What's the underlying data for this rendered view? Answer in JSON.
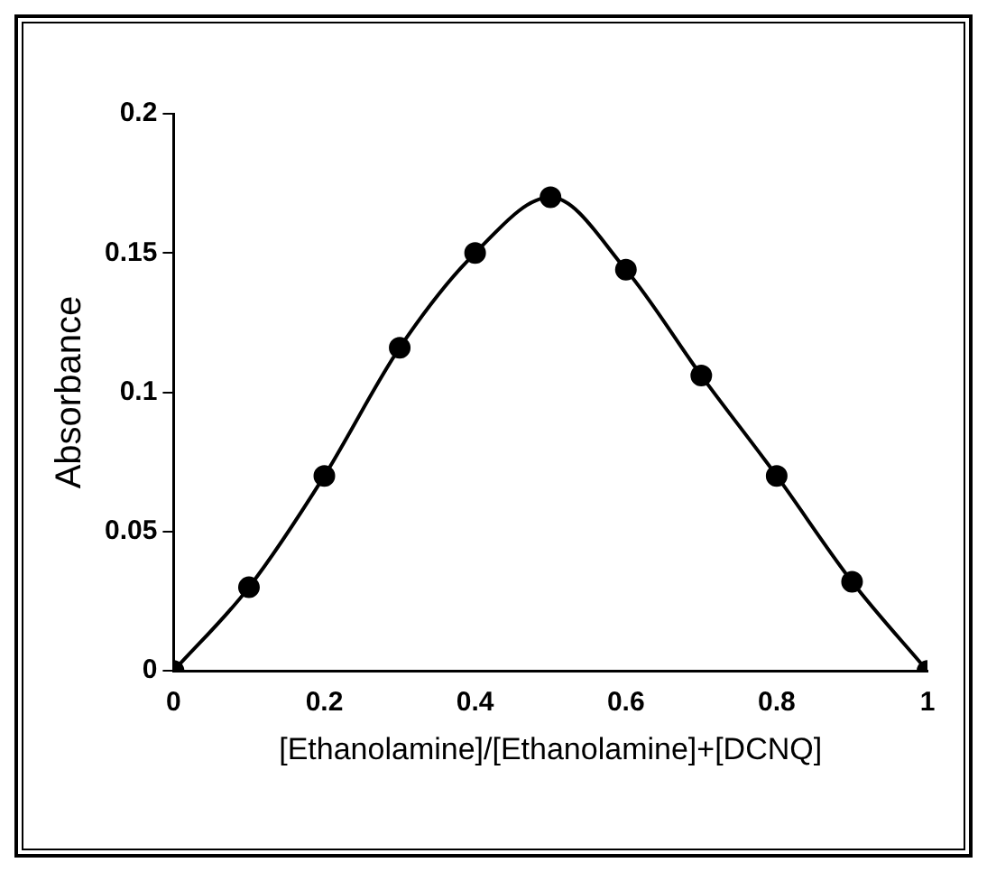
{
  "chart_data": {
    "type": "line",
    "xlabel": "[Ethanolamine]/[Ethanolamine]+[DCNQ]",
    "ylabel": "Absorbance",
    "x": [
      0,
      0.1,
      0.2,
      0.3,
      0.4,
      0.5,
      0.6,
      0.7,
      0.8,
      0.9,
      1
    ],
    "series": [
      {
        "color": "#000000",
        "values": [
          0,
          0.03,
          0.07,
          0.116,
          0.15,
          0.17,
          0.144,
          0.106,
          0.07,
          0.032,
          0
        ]
      }
    ],
    "xlim": [
      0,
      1
    ],
    "xticks": [
      0,
      0.2,
      0.4,
      0.6,
      0.8,
      1
    ],
    "ylim": [
      0,
      0.2
    ],
    "yticks": [
      0,
      0.05,
      0.1,
      0.15,
      0.2
    ],
    "grid": false,
    "legend": false,
    "marker": "circle",
    "line_style": "solid"
  }
}
